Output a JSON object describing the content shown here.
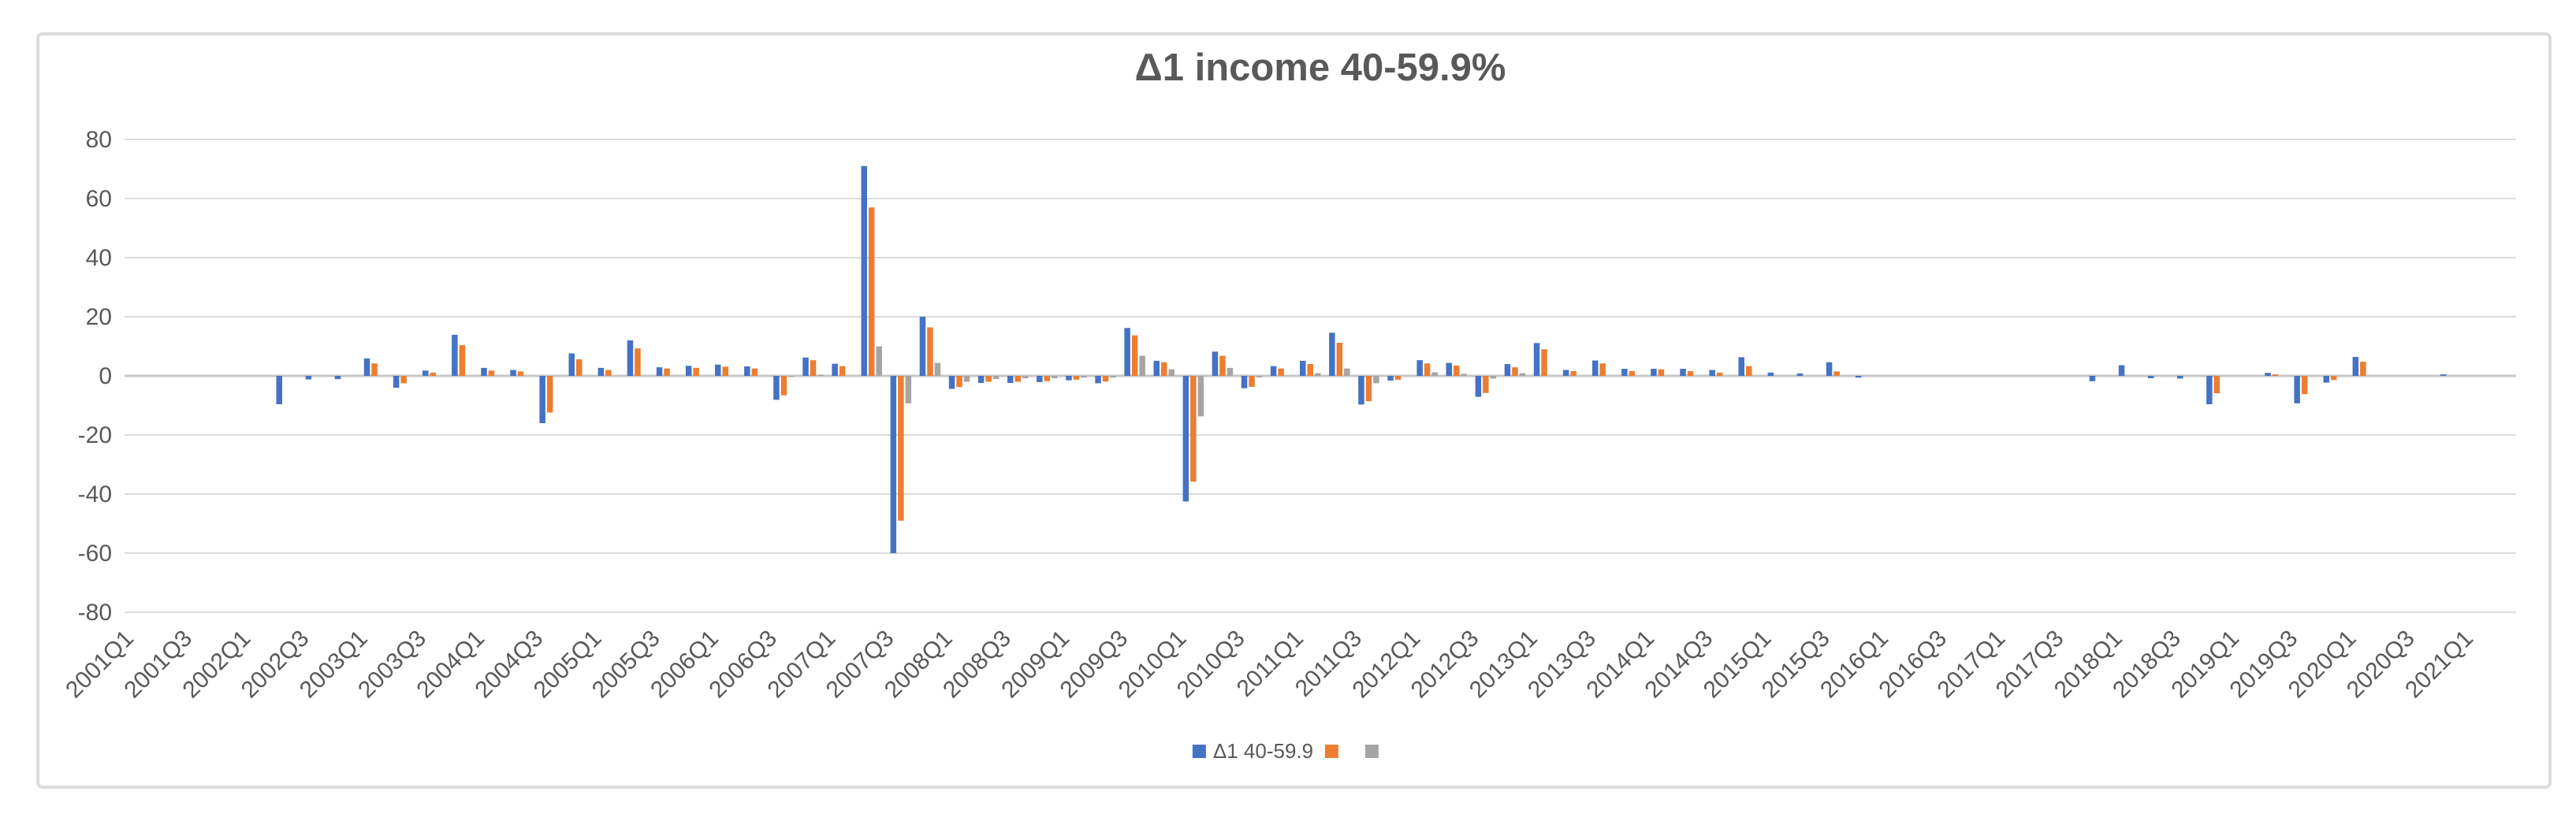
{
  "title": "Δ1 income 40-59.9%",
  "chart_data": {
    "type": "bar",
    "title": "Δ1 income 40-59.9%",
    "xlabel": "",
    "ylabel": "",
    "ylim": [
      -80,
      80
    ],
    "yticks": [
      80,
      60,
      40,
      20,
      0,
      -20,
      -40,
      -60,
      -80
    ],
    "grid": true,
    "legend_position": "bottom-center",
    "xtick_labels_every": 2,
    "categories": [
      "2001Q1",
      "2001Q2",
      "2001Q3",
      "2001Q4",
      "2002Q1",
      "2002Q2",
      "2002Q3",
      "2002Q4",
      "2003Q1",
      "2003Q2",
      "2003Q3",
      "2003Q4",
      "2004Q1",
      "2004Q2",
      "2004Q3",
      "2004Q4",
      "2005Q1",
      "2005Q2",
      "2005Q3",
      "2005Q4",
      "2006Q1",
      "2006Q2",
      "2006Q3",
      "2006Q4",
      "2007Q1",
      "2007Q2",
      "2007Q3",
      "2007Q4",
      "2008Q1",
      "2008Q2",
      "2008Q3",
      "2008Q4",
      "2009Q1",
      "2009Q2",
      "2009Q3",
      "2009Q4",
      "2010Q1",
      "2010Q2",
      "2010Q3",
      "2010Q4",
      "2011Q1",
      "2011Q2",
      "2011Q3",
      "2011Q4",
      "2012Q1",
      "2012Q2",
      "2012Q3",
      "2012Q4",
      "2013Q1",
      "2013Q2",
      "2013Q3",
      "2013Q4",
      "2014Q1",
      "2014Q2",
      "2014Q3",
      "2014Q4",
      "2015Q1",
      "2015Q2",
      "2015Q3",
      "2015Q4",
      "2016Q1",
      "2016Q2",
      "2016Q3",
      "2016Q4",
      "2017Q1",
      "2017Q2",
      "2017Q3",
      "2017Q4",
      "2018Q1",
      "2018Q2",
      "2018Q3",
      "2018Q4",
      "2019Q1",
      "2019Q2",
      "2019Q3",
      "2019Q4",
      "2020Q1",
      "2020Q2",
      "2020Q3",
      "2020Q4",
      "2021Q1"
    ],
    "series": [
      {
        "name": "Δ1 40-59.9",
        "color": "#4472C4",
        "values": [
          0,
          0,
          0,
          0,
          0,
          -9.6,
          -1.2,
          -1.1,
          5.9,
          -4,
          1.8,
          13.9,
          2.7,
          2,
          -16,
          7.6,
          2.7,
          12,
          2.9,
          3.4,
          3.8,
          3.2,
          -8.1,
          6.2,
          4.1,
          71,
          -60,
          20,
          -4.4,
          -2.4,
          -2.4,
          -2.1,
          -1.5,
          -2.5,
          16.2,
          5.1,
          -42.5,
          8.2,
          -4.2,
          3.3,
          5.1,
          14.6,
          -9.7,
          -1.6,
          5.3,
          4.4,
          -7.1,
          4,
          11.1,
          2,
          5.2,
          2.4,
          2.4,
          2.4,
          2,
          6.3,
          1.1,
          0.8,
          4.6,
          -0.6,
          0,
          0,
          0,
          0,
          0,
          0,
          0,
          -1.8,
          3.6,
          -0.8,
          -0.9,
          -9.6,
          0,
          1,
          -9.3,
          -2.3,
          6.4,
          0,
          0,
          0.5,
          0
        ]
      },
      {
        "name": "",
        "color": "#ED7D31",
        "values": [
          0,
          0,
          0,
          0,
          0,
          0,
          0,
          0,
          4.2,
          -2.5,
          1.1,
          10.4,
          1.8,
          1.5,
          -12.4,
          5.6,
          2,
          9.3,
          2.5,
          2.7,
          3.1,
          2.5,
          -6.6,
          5.3,
          3.3,
          57,
          -49,
          16.4,
          -3.8,
          -2,
          -2,
          -1.8,
          -1.3,
          -1.9,
          13.7,
          4.6,
          -35.8,
          6.8,
          -3.7,
          2.5,
          4,
          11.2,
          -8.6,
          -1.3,
          4.2,
          3.5,
          -5.8,
          2.9,
          9,
          1.6,
          4.2,
          1.6,
          2.2,
          1.6,
          1.1,
          3.3,
          0,
          0,
          1.5,
          0,
          0,
          0,
          0,
          0,
          0,
          0,
          0,
          0,
          0,
          0,
          0,
          -5.9,
          0,
          0.5,
          -6.2,
          -1.4,
          4.8,
          0,
          0,
          0,
          0
        ]
      },
      {
        "name": "",
        "color": "#A5A5A5",
        "values": [
          0,
          0,
          0,
          0,
          0,
          0,
          0,
          0,
          0,
          0,
          0,
          0,
          0,
          0,
          0,
          0,
          0,
          0,
          0,
          0,
          0,
          0,
          -0.4,
          0.4,
          0,
          10,
          -9.3,
          4.4,
          -2,
          -1.1,
          -0.8,
          -0.8,
          -0.6,
          -0.6,
          6.8,
          2.2,
          -13.7,
          2.7,
          -0.5,
          0,
          0.9,
          2.5,
          -2.5,
          0,
          1.2,
          0.7,
          -0.9,
          0.9,
          0,
          0,
          0,
          0,
          0,
          0,
          0,
          0,
          0,
          0,
          0,
          0,
          0,
          0,
          0,
          0,
          0,
          0,
          0,
          0,
          0,
          0,
          0,
          0,
          0,
          0,
          0,
          0,
          0,
          0,
          0,
          0,
          0
        ]
      }
    ]
  },
  "colors": {
    "frame_border": "#dcdcdc",
    "gridline": "#dcdcdc",
    "zero_axis": "#c6c6c6",
    "tick_label": "#595959",
    "title": "#595959"
  }
}
